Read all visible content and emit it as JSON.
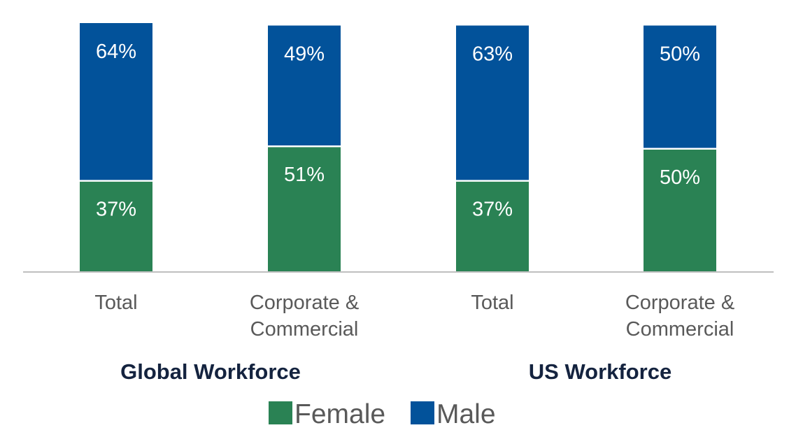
{
  "chart_data": {
    "type": "bar",
    "stacked": true,
    "categories": [
      "Total",
      "Corporate & Commercial",
      "Total",
      "Corporate & Commercial"
    ],
    "category_lines": [
      [
        "Total"
      ],
      [
        "Corporate &",
        "Commercial"
      ],
      [
        "Total"
      ],
      [
        "Corporate &",
        "Commercial"
      ]
    ],
    "groups": [
      {
        "label": "Global Workforce",
        "categories": [
          0,
          1
        ]
      },
      {
        "label": "US Workforce",
        "categories": [
          2,
          3
        ]
      }
    ],
    "series": [
      {
        "name": "Female",
        "color": "#2a8254",
        "values": [
          37,
          51,
          37,
          50
        ],
        "labels": [
          "37%",
          "51%",
          "37%",
          "50%"
        ]
      },
      {
        "name": "Male",
        "color": "#02529a",
        "values": [
          64,
          49,
          63,
          50
        ],
        "labels": [
          "64%",
          "49%",
          "63%",
          "50%"
        ]
      }
    ],
    "ylim": [
      0,
      101
    ],
    "grid": false,
    "legend_position": "bottom",
    "title": "",
    "xlabel": "",
    "ylabel": ""
  }
}
